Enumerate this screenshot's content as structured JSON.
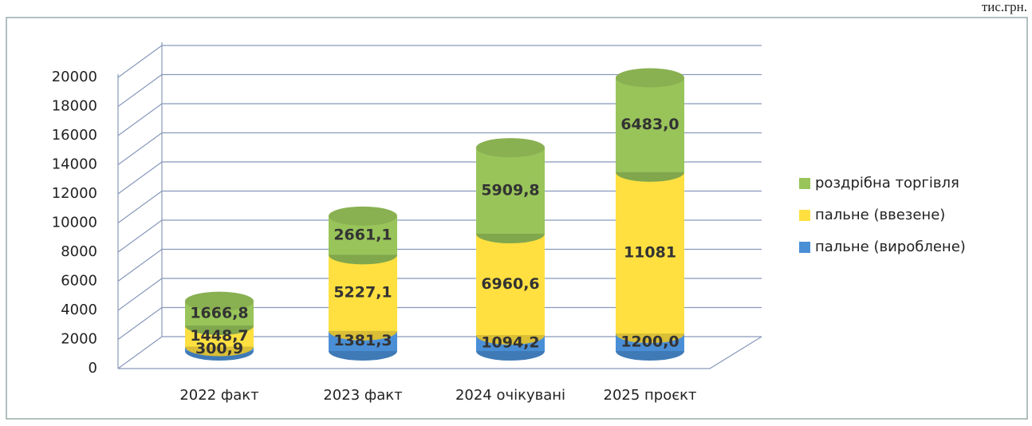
{
  "chart_data": {
    "type": "bar",
    "stacked": true,
    "unit_label": "тис.грн.",
    "categories": [
      "2022 факт",
      "2023 факт",
      "2024 очікувані",
      "2025 проєкт"
    ],
    "series": [
      {
        "name": "пальне (вироблене)",
        "color": "#4a8fd6",
        "values": [
          300.9,
          1381.3,
          1094.2,
          1200.0
        ],
        "value_labels": [
          "300,9",
          "1381,3",
          "1094,2",
          "1200,0"
        ]
      },
      {
        "name": "пальне (ввезене)",
        "color": "#ffe040",
        "values": [
          1448.7,
          5227.1,
          6960.6,
          11081
        ],
        "value_labels": [
          "1448,7",
          "5227,1",
          "6960,6",
          "11081"
        ]
      },
      {
        "name": "роздрібна торгівля",
        "color": "#98c45a",
        "values": [
          1666.8,
          2661.1,
          5909.8,
          6483.0
        ],
        "value_labels": [
          "1666,8",
          "2661,1",
          "5909,8",
          "6483,0"
        ]
      }
    ],
    "ylim": [
      0,
      20000
    ],
    "yticks": [
      0,
      2000,
      4000,
      6000,
      8000,
      10000,
      12000,
      14000,
      16000,
      18000,
      20000
    ],
    "grid": true,
    "legend": "right"
  }
}
